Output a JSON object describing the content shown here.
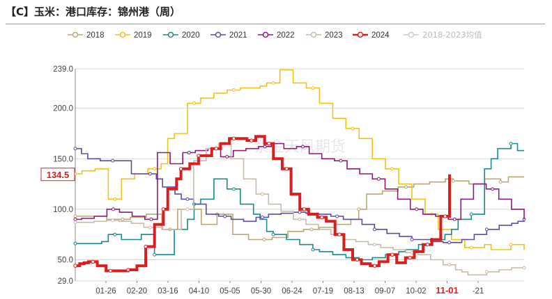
{
  "chart_data": {
    "type": "line",
    "title": "【C】玉米：港口库存：锦州港（周）",
    "ylim": [
      29.0,
      239.0
    ],
    "y_ticks": [
      "29.0",
      "50.0",
      "100.0",
      "150.0",
      "200.0",
      "239.0"
    ],
    "x_ticks": [
      "01-26",
      "02-20",
      "03-16",
      "04-10",
      "05-05",
      "05-30",
      "06-24",
      "07-19",
      "08-13",
      "09-07",
      "10-02",
      "11-01",
      "-21"
    ],
    "x_ticks_highlight": "11-01",
    "current_value_label": "134.5",
    "current_value": 134.5,
    "legend_position": "top",
    "grid": true,
    "watermark": "紫金天风期货",
    "series": [
      {
        "name": "2018",
        "color": "#b8a878",
        "values": [
          93,
          93,
          93,
          93,
          90,
          90,
          90,
          92,
          92,
          95,
          95,
          80,
          80,
          100,
          100,
          100,
          85,
          85,
          95,
          95,
          75,
          75,
          70,
          70,
          70,
          72,
          72,
          78,
          78,
          80,
          80,
          82,
          82,
          85,
          85,
          90,
          100,
          115,
          115,
          118,
          118,
          122,
          122,
          125,
          125,
          127,
          127,
          130,
          128,
          128,
          125,
          125,
          130,
          130,
          127,
          132,
          132,
          132
        ]
      },
      {
        "name": "2019",
        "color": "#f5c018",
        "values": [
          135,
          138,
          138,
          140,
          140,
          110,
          110,
          130,
          130,
          135,
          135,
          140,
          140,
          145,
          170,
          175,
          175,
          205,
          205,
          210,
          210,
          215,
          215,
          218,
          218,
          220,
          220,
          220,
          222,
          225,
          225,
          238,
          238,
          225,
          225,
          220,
          220,
          205,
          205,
          190,
          190,
          180,
          180,
          170,
          170,
          150,
          150,
          140,
          140,
          125,
          125,
          110,
          110,
          95,
          95,
          80,
          80,
          70,
          70,
          62,
          62,
          62,
          65,
          60,
          60,
          60,
          65,
          65,
          60
        ]
      },
      {
        "name": "2020",
        "color": "#1a8a8a",
        "values": [
          66,
          66,
          66,
          66,
          68,
          75,
          75,
          70,
          70,
          70,
          75,
          75,
          55,
          55,
          55,
          80,
          80,
          90,
          105,
          110,
          110,
          130,
          130,
          120,
          120,
          105,
          105,
          95,
          90,
          78,
          75,
          75,
          70,
          70,
          65,
          65,
          60,
          58,
          58,
          55,
          55,
          52,
          52,
          50,
          50,
          52,
          52,
          55,
          55,
          58,
          60,
          60,
          65,
          65,
          70,
          70,
          75,
          80,
          90,
          90,
          95,
          95,
          140,
          150,
          160,
          160,
          165,
          158,
          158
        ]
      },
      {
        "name": "2021",
        "color": "#5d4ba3",
        "values": [
          160,
          155,
          150,
          150,
          148,
          148,
          148,
          148,
          148,
          135,
          135,
          135,
          135,
          130,
          122,
          122,
          115,
          110,
          110,
          105,
          105,
          95,
          95,
          93,
          93,
          90,
          90,
          88,
          88,
          92,
          92,
          95,
          95,
          96,
          96,
          97,
          97,
          96,
          96,
          95,
          95,
          93,
          93,
          90,
          90,
          90,
          85,
          85,
          80,
          80,
          76,
          76,
          73,
          73,
          70,
          70,
          70,
          68,
          68,
          67,
          67,
          67,
          70,
          70,
          75,
          75,
          80,
          80,
          84,
          84,
          86,
          88,
          90
        ]
      },
      {
        "name": "2022",
        "color": "#8b1a7a",
        "values": [
          90,
          91,
          91,
          93,
          93,
          100,
          100,
          97,
          97,
          93,
          93,
          90,
          90,
          156,
          156,
          145,
          145,
          156,
          156,
          158,
          158,
          160,
          160,
          152,
          152,
          158,
          158,
          160,
          160,
          162,
          162,
          165,
          165,
          160,
          160,
          162,
          162,
          155,
          155,
          150,
          150,
          148,
          148,
          140,
          140,
          135,
          135,
          130,
          130,
          120,
          120,
          110,
          110,
          100,
          100,
          95,
          95,
          93,
          93,
          90,
          90,
          110,
          110,
          125,
          125,
          120,
          120,
          110,
          110,
          100,
          100,
          90
        ]
      },
      {
        "name": "2023",
        "color": "#c8bca8",
        "values": [
          87,
          87,
          87,
          88,
          88,
          89,
          89,
          88,
          88,
          86,
          86,
          82,
          82,
          82,
          80,
          80,
          80,
          100,
          100,
          148,
          148,
          160,
          160,
          165,
          165,
          150,
          150,
          130,
          130,
          115,
          115,
          105,
          105,
          98,
          98,
          90,
          90,
          85,
          85,
          80,
          80,
          75,
          75,
          70,
          70,
          68,
          68,
          65,
          65,
          62,
          62,
          60,
          60,
          57,
          57,
          55,
          55,
          50,
          50,
          45,
          45,
          40,
          38,
          35,
          35,
          35,
          38,
          38,
          40,
          40,
          42,
          42,
          42
        ]
      },
      {
        "name": "2024",
        "color": "#d81e1e",
        "values": [
          44,
          46,
          47,
          48,
          48,
          44,
          44,
          39,
          39,
          39,
          39,
          39,
          40,
          40,
          44,
          44,
          63,
          63,
          85,
          85,
          100,
          120,
          120,
          130,
          140,
          140,
          145,
          145,
          153,
          153,
          153,
          160,
          160,
          165,
          165,
          170,
          170,
          170,
          170,
          168,
          168,
          172,
          172,
          165,
          165,
          150,
          150,
          140,
          140,
          115,
          115,
          100,
          100,
          95,
          95,
          92,
          92,
          88,
          88,
          75,
          75,
          60,
          60,
          50,
          50,
          46,
          46,
          44,
          44,
          48,
          48,
          55,
          55,
          47,
          47,
          52,
          52,
          58,
          58,
          65,
          65,
          70,
          70,
          93,
          93,
          134.5
        ]
      },
      {
        "name": "2018-2023均值",
        "color": "#c9c9c9",
        "values": []
      }
    ]
  }
}
